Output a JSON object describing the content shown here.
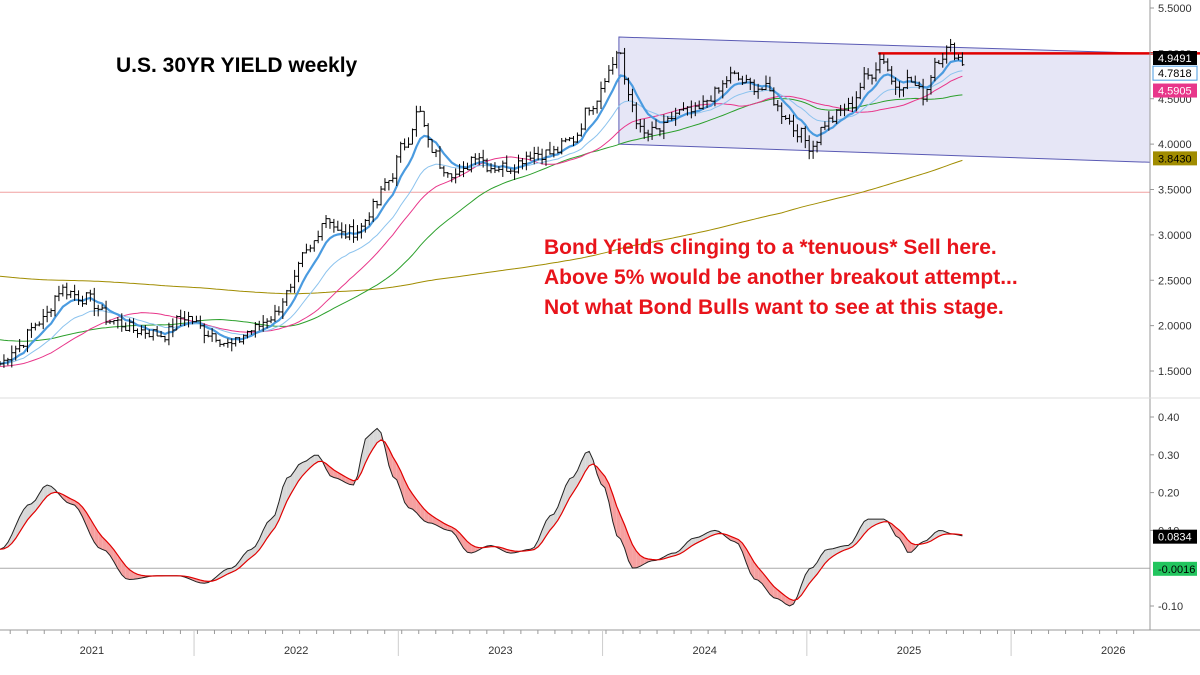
{
  "title": "U.S. 30YR YIELD weekly",
  "annotation_lines": [
    "Bond Yields clinging to a *tenuous* Sell here.",
    "Above 5% would be another breakout attempt...",
    "Not what Bond Bulls want to see at this stage."
  ],
  "colors": {
    "price": "#000000",
    "ema_fast": "#4a9be0",
    "ema_slow": "#8cc3ee",
    "ma_pink": "#e8368a",
    "ma_green": "#2ca02c",
    "ma_olive": "#a08c00",
    "resistance": "#e00000",
    "channel_fill": "#e6e6f6",
    "channel_line": "#5a5ab4",
    "support_line": "#f0a0a0",
    "osc_main": "#222222",
    "osc_signal": "#e00000",
    "osc_fill_up": "#d8d8d8",
    "osc_fill_down": "#f5a0a0"
  },
  "chart_data": [
    {
      "type": "line",
      "panel": "price",
      "ylim": [
        1.25,
        5.5
      ],
      "y_ticks": [
        "5.5000",
        "5.0000",
        "4.5000",
        "4.0000",
        "3.5000",
        "3.0000",
        "2.5000",
        "2.0000",
        "1.5000"
      ],
      "x_labels": [
        "2021",
        "2022",
        "2023",
        "2024",
        "2025",
        "2026"
      ],
      "x_label_dates": [
        2021.0,
        2022.0,
        2023.0,
        2024.0,
        2025.0,
        2026.0
      ],
      "xlim": [
        2020.55,
        2026.18
      ],
      "price_anchors": [
        [
          2020.55,
          1.58
        ],
        [
          2020.62,
          1.75
        ],
        [
          2020.75,
          2.05
        ],
        [
          2020.85,
          2.4
        ],
        [
          2020.97,
          2.3
        ],
        [
          2021.1,
          2.05
        ],
        [
          2021.22,
          1.95
        ],
        [
          2021.35,
          1.9
        ],
        [
          2021.45,
          2.1
        ],
        [
          2021.58,
          1.92
        ],
        [
          2021.68,
          1.78
        ],
        [
          2021.78,
          1.95
        ],
        [
          2021.88,
          2.1
        ],
        [
          2021.96,
          2.35
        ],
        [
          2022.05,
          2.8
        ],
        [
          2022.15,
          3.2
        ],
        [
          2022.22,
          3.0
        ],
        [
          2022.3,
          3.05
        ],
        [
          2022.38,
          3.3
        ],
        [
          2022.45,
          3.6
        ],
        [
          2022.53,
          4.0
        ],
        [
          2022.6,
          4.35
        ],
        [
          2022.66,
          3.95
        ],
        [
          2022.72,
          3.75
        ],
        [
          2022.8,
          3.65
        ],
        [
          2022.88,
          3.9
        ],
        [
          2022.95,
          3.75
        ],
        [
          2023.05,
          3.75
        ],
        [
          2023.15,
          3.9
        ],
        [
          2023.25,
          3.9
        ],
        [
          2023.35,
          4.05
        ],
        [
          2023.45,
          4.45
        ],
        [
          2023.53,
          4.8
        ],
        [
          2023.58,
          5.05
        ],
        [
          2023.62,
          4.55
        ],
        [
          2023.7,
          4.1
        ],
        [
          2023.78,
          4.15
        ],
        [
          2023.87,
          4.35
        ],
        [
          2023.95,
          4.35
        ],
        [
          2024.05,
          4.55
        ],
        [
          2024.13,
          4.75
        ],
        [
          2024.22,
          4.65
        ],
        [
          2024.3,
          4.6
        ],
        [
          2024.38,
          4.35
        ],
        [
          2024.45,
          4.15
        ],
        [
          2024.52,
          3.98
        ],
        [
          2024.6,
          4.25
        ],
        [
          2024.7,
          4.4
        ],
        [
          2024.8,
          4.75
        ],
        [
          2024.87,
          4.95
        ],
        [
          2024.93,
          4.65
        ],
        [
          2025.0,
          4.7
        ],
        [
          2025.07,
          4.55
        ],
        [
          2025.14,
          4.95
        ],
        [
          2025.2,
          5.05
        ],
        [
          2025.27,
          4.9
        ]
      ],
      "labels": {
        "last_price": "4.9491",
        "ema_fast": "4.7818",
        "ma_pink": "4.5905",
        "ma_olive": "3.8430",
        "hidden_top": "5.0000"
      },
      "resistance_level": 5.0,
      "resistance_from": 2024.85,
      "support_level": 3.47,
      "channel": {
        "upper": [
          [
            2023.58,
            5.18
          ],
          [
            2026.18,
            5.0
          ]
        ],
        "lower": [
          [
            2023.58,
            4.0
          ],
          [
            2026.18,
            3.8
          ]
        ]
      }
    },
    {
      "type": "line",
      "panel": "oscillator",
      "ylim": [
        -0.15,
        0.45
      ],
      "y_ticks": [
        "0.40",
        "0.30",
        "0.20",
        "0.10",
        "-0.10"
      ],
      "zero_label": "-0.0016",
      "last_label": "0.0834",
      "osc_anchors": [
        [
          2020.55,
          0.05
        ],
        [
          2020.7,
          0.17
        ],
        [
          2020.78,
          0.22
        ],
        [
          2020.9,
          0.17
        ],
        [
          2021.05,
          0.05
        ],
        [
          2021.18,
          -0.03
        ],
        [
          2021.32,
          -0.02
        ],
        [
          2021.42,
          -0.02
        ],
        [
          2021.55,
          -0.04
        ],
        [
          2021.68,
          0.0
        ],
        [
          2021.78,
          0.05
        ],
        [
          2021.88,
          0.13
        ],
        [
          2021.96,
          0.24
        ],
        [
          2022.03,
          0.28
        ],
        [
          2022.1,
          0.3
        ],
        [
          2022.18,
          0.24
        ],
        [
          2022.28,
          0.22
        ],
        [
          2022.35,
          0.35
        ],
        [
          2022.4,
          0.37
        ],
        [
          2022.48,
          0.24
        ],
        [
          2022.55,
          0.16
        ],
        [
          2022.65,
          0.12
        ],
        [
          2022.75,
          0.1
        ],
        [
          2022.85,
          0.04
        ],
        [
          2022.95,
          0.06
        ],
        [
          2023.05,
          0.04
        ],
        [
          2023.15,
          0.05
        ],
        [
          2023.25,
          0.14
        ],
        [
          2023.35,
          0.24
        ],
        [
          2023.43,
          0.31
        ],
        [
          2023.5,
          0.22
        ],
        [
          2023.58,
          0.08
        ],
        [
          2023.65,
          0.0
        ],
        [
          2023.75,
          0.02
        ],
        [
          2023.85,
          0.04
        ],
        [
          2023.95,
          0.08
        ],
        [
          2024.05,
          0.1
        ],
        [
          2024.15,
          0.07
        ],
        [
          2024.25,
          -0.03
        ],
        [
          2024.35,
          -0.08
        ],
        [
          2024.42,
          -0.1
        ],
        [
          2024.52,
          0.0
        ],
        [
          2024.6,
          0.05
        ],
        [
          2024.7,
          0.06
        ],
        [
          2024.8,
          0.13
        ],
        [
          2024.88,
          0.13
        ],
        [
          2024.95,
          0.08
        ],
        [
          2025.0,
          0.04
        ],
        [
          2025.07,
          0.07
        ],
        [
          2025.15,
          0.1
        ],
        [
          2025.22,
          0.09
        ],
        [
          2025.27,
          0.085
        ]
      ]
    }
  ]
}
